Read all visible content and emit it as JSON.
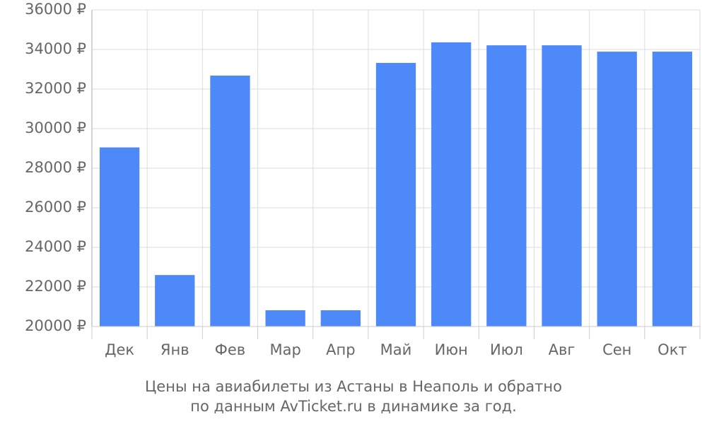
{
  "chart_data": {
    "type": "bar",
    "title": [
      "Цены на авиабилеты из Астаны в Неаполь и обратно",
      "по данным AvTicket.ru в динамике за год."
    ],
    "categories": [
      "Дек",
      "Янв",
      "Фев",
      "Мар",
      "Апр",
      "Май",
      "Июн",
      "Июл",
      "Авг",
      "Сен",
      "Окт"
    ],
    "values": [
      29050,
      22600,
      32680,
      20820,
      20820,
      33320,
      34360,
      34210,
      34210,
      33890,
      33890
    ],
    "color": "#4d89f9",
    "ylim": [
      20000,
      36000
    ],
    "yticks": [
      {
        "value": 20000,
        "label": "20000 ₽"
      },
      {
        "value": 22000,
        "label": "22000 ₽"
      },
      {
        "value": 24000,
        "label": "24000 ₽"
      },
      {
        "value": 26000,
        "label": "26000 ₽"
      },
      {
        "value": 28000,
        "label": "28000 ₽"
      },
      {
        "value": 30000,
        "label": "30000 ₽"
      },
      {
        "value": 32000,
        "label": "32000 ₽"
      },
      {
        "value": 34000,
        "label": "34000 ₽"
      },
      {
        "value": 36000,
        "label": "36000 ₽"
      }
    ],
    "grid": true
  }
}
